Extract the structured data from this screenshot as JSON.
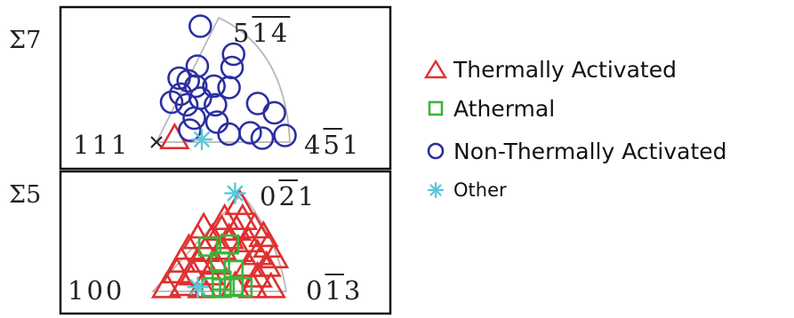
{
  "chart_data": [
    {
      "type": "scatter",
      "panel_label": "Σ7",
      "corners": {
        "bottom_left": {
          "a": "1",
          "b": "1",
          "c": "1",
          "bar_b": false,
          "bar_c": false
        },
        "bottom_right": {
          "a": "4",
          "b": "5",
          "c": "1",
          "bar_b": true,
          "bar_c": false
        },
        "top": {
          "a": "5",
          "b": "1",
          "c": "4",
          "bar_b": true,
          "bar_c": true
        }
      },
      "series": [
        {
          "name": "Thermally Activated",
          "marker": "triangle",
          "color": "#e03030",
          "points": [
            [
              0.12,
              0.03
            ]
          ]
        },
        {
          "name": "Non-Thermally Activated",
          "marker": "circle",
          "color": "#2b2fa0",
          "points": [
            [
              0.29,
              0.87
            ],
            [
              0.51,
              0.66
            ],
            [
              0.27,
              0.57
            ],
            [
              0.5,
              0.56
            ],
            [
              0.15,
              0.48
            ],
            [
              0.21,
              0.46
            ],
            [
              0.26,
              0.42
            ],
            [
              0.38,
              0.42
            ],
            [
              0.48,
              0.41
            ],
            [
              0.16,
              0.36
            ],
            [
              0.29,
              0.33
            ],
            [
              0.1,
              0.3
            ],
            [
              0.2,
              0.28
            ],
            [
              0.39,
              0.28
            ],
            [
              0.67,
              0.29
            ],
            [
              0.78,
              0.22
            ],
            [
              0.25,
              0.18
            ],
            [
              0.4,
              0.15
            ],
            [
              0.22,
              0.09
            ],
            [
              0.48,
              0.06
            ],
            [
              0.62,
              0.07
            ],
            [
              0.85,
              0.05
            ],
            [
              0.7,
              0.03
            ]
          ]
        },
        {
          "name": "Other",
          "marker": "star",
          "color": "#59c7db",
          "points": [
            [
              0.3,
              0.02
            ]
          ]
        }
      ]
    },
    {
      "type": "scatter",
      "panel_label": "Σ5",
      "corners": {
        "bottom_left": {
          "a": "1",
          "b": "0",
          "c": "0",
          "bar_b": false,
          "bar_c": false
        },
        "bottom_right": {
          "a": "0",
          "b": "1",
          "c": "3",
          "bar_b": true,
          "bar_c": false
        },
        "top": {
          "a": "0",
          "b": "2",
          "c": "1",
          "bar_b": true,
          "bar_c": false
        }
      },
      "series": [
        {
          "name": "Thermally Activated",
          "marker": "triangle",
          "color": "#e03030",
          "points": [
            [
              0.58,
              0.82
            ],
            [
              0.48,
              0.68
            ],
            [
              0.6,
              0.68
            ],
            [
              0.34,
              0.6
            ],
            [
              0.46,
              0.58
            ],
            [
              0.56,
              0.58
            ],
            [
              0.68,
              0.6
            ],
            [
              0.74,
              0.52
            ],
            [
              0.3,
              0.5
            ],
            [
              0.4,
              0.5
            ],
            [
              0.51,
              0.5
            ],
            [
              0.64,
              0.47
            ],
            [
              0.77,
              0.42
            ],
            [
              0.24,
              0.4
            ],
            [
              0.35,
              0.38
            ],
            [
              0.46,
              0.4
            ],
            [
              0.58,
              0.38
            ],
            [
              0.7,
              0.35
            ],
            [
              0.81,
              0.32
            ],
            [
              0.19,
              0.28
            ],
            [
              0.3,
              0.28
            ],
            [
              0.42,
              0.26
            ],
            [
              0.64,
              0.24
            ],
            [
              0.76,
              0.24
            ],
            [
              0.16,
              0.18
            ],
            [
              0.27,
              0.16
            ],
            [
              0.38,
              0.16
            ],
            [
              0.7,
              0.14
            ],
            [
              0.09,
              0.04
            ],
            [
              0.21,
              0.06
            ],
            [
              0.33,
              0.04
            ],
            [
              0.55,
              0.05
            ],
            [
              0.67,
              0.04
            ],
            [
              0.79,
              0.04
            ]
          ]
        },
        {
          "name": "Athermal",
          "marker": "square",
          "color": "#3ab53a",
          "points": [
            [
              0.37,
              0.42
            ],
            [
              0.51,
              0.44
            ],
            [
              0.45,
              0.28
            ],
            [
              0.54,
              0.2
            ],
            [
              0.46,
              0.1
            ],
            [
              0.39,
              0.04
            ],
            [
              0.46,
              0.03
            ],
            [
              0.54,
              0.05
            ],
            [
              0.6,
              0.04
            ]
          ]
        },
        {
          "name": "Other",
          "marker": "star",
          "color": "#59c7db",
          "points": [
            [
              0.55,
              0.92
            ],
            [
              0.3,
              0.04
            ]
          ]
        }
      ]
    }
  ],
  "legend": [
    {
      "marker": "triangle",
      "color": "#e03030",
      "label": "Thermally Activated"
    },
    {
      "marker": "square",
      "color": "#3ab53a",
      "label": "Athermal"
    },
    {
      "marker": "circle",
      "color": "#2b2fa0",
      "label": "Non-Thermally Activated"
    },
    {
      "marker": "star",
      "color": "#59c7db",
      "label": "Other"
    }
  ]
}
